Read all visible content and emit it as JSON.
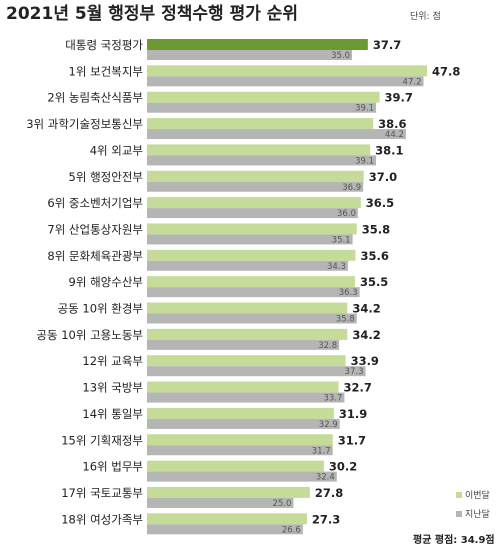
{
  "chart_data": {
    "type": "bar",
    "orientation": "horizontal",
    "title": "2021년 5월 행정부 정책수행 평가 순위",
    "unit_label": "단위: 점",
    "categories": [
      "대통령 국정평가",
      "1위 보건복지부",
      "2위 농림축산식품부",
      "3위 과학기술정보통신부",
      "4위 외교부",
      "5위 행정안전부",
      "6위 중소벤처기업부",
      "7위 산업통상자원부",
      "8위 문화체육관광부",
      "9위 해양수산부",
      "공동 10위 환경부",
      "공동 10위 고용노동부",
      "12위 교육부",
      "13위 국방부",
      "14위 통일부",
      "15위 기획재정부",
      "16위 법무부",
      "17위 국토교통부",
      "18위 여성가족부"
    ],
    "series": [
      {
        "name": "이번달",
        "values": [
          37.7,
          47.8,
          39.7,
          38.6,
          38.1,
          37.0,
          36.5,
          35.8,
          35.6,
          35.5,
          34.2,
          34.2,
          33.9,
          32.7,
          31.9,
          31.7,
          30.2,
          27.8,
          27.3
        ]
      },
      {
        "name": "지난달",
        "values": [
          35.0,
          47.2,
          39.1,
          44.2,
          39.1,
          36.9,
          36.0,
          35.1,
          34.3,
          36.3,
          35.8,
          32.8,
          37.3,
          33.7,
          32.9,
          31.7,
          32.4,
          25.0,
          26.6
        ]
      }
    ],
    "value_labels_current": [
      "37.7",
      "47.8",
      "39.7",
      "38.6",
      "38.1",
      "37.0",
      "36.5",
      "35.8",
      "35.6",
      "35.5",
      "34.2",
      "34.2",
      "33.9",
      "32.7",
      "31.9",
      "31.7",
      "30.2",
      "27.8",
      "27.3"
    ],
    "value_labels_previous": [
      "35.0",
      "47.2",
      "39.1",
      "44.2",
      "39.1",
      "36.9",
      "36.0",
      "35.1",
      "34.3",
      "36.3",
      "35.8",
      "32.8",
      "37.3",
      "33.7",
      "32.9",
      "31.7",
      "32.4",
      "25.0",
      "26.6"
    ],
    "xlim": [
      0,
      47.8
    ],
    "grid": false,
    "legend_position": "bottom-right",
    "average_label": "평균 평점: 34.9점",
    "colors": {
      "current": "#c4dc98",
      "current_highlight": "#6b9a33",
      "previous": "#b5b5b5",
      "text": "#222222"
    }
  }
}
